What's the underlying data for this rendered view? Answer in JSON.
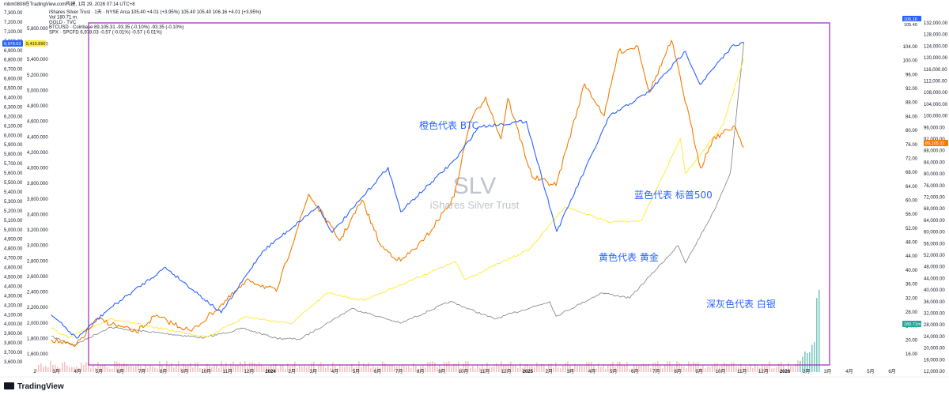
{
  "header": {
    "line1": "mbm0808在TradingView.com构建, 1月 29, 2026 07:14 UTC+8",
    "legend": [
      {
        "text": "iShares Silver Trust · 1天 · NYSE Arca  105.40  +4.01 (+3.95%)  105.40 105.40 106.16 +4.01 (+3.95%)",
        "color": "#131722"
      },
      {
        "text": "Vol  180.71 m",
        "color": "#131722"
      },
      {
        "text": "GOLD · TVC",
        "color": "#b8a000"
      },
      {
        "text": "BTCUSD · Coinbase  89,105.31  -93.35 (-0.10%)  -93.35 (-0.10%)",
        "color": "#ef6c00"
      },
      {
        "text": "SPX · SPCFD  6,978.03  -0.57 (-0.01%)  -0.57 (-0.01%)",
        "color": "#2962ff"
      }
    ]
  },
  "colors": {
    "btc": "#f57c00",
    "spx": "#2962ff",
    "gold": "#ffeb3b",
    "silver": "#808080",
    "frame": "#9c27b0",
    "volume": "#ef9a9a"
  },
  "watermark": {
    "symbol": "SLV",
    "name": "iShares Silver Trust"
  },
  "annotations": {
    "btc": "橙色代表 BTC",
    "spx": "蓝色代表 标普500",
    "gold": "黄色代表 黄金",
    "silver": "深灰色代表 白银"
  },
  "left_axis_spx": {
    "labels": [
      "7,300.00",
      "7,200.00",
      "7,100.00",
      "7,000.00",
      "6,900.00",
      "6,800.00",
      "6,700.00",
      "6,600.00",
      "6,500.00",
      "6,400.00",
      "6,300.00",
      "6,200.00",
      "6,100.00",
      "6,000.00",
      "5,900.00",
      "5,800.00",
      "5,700.00",
      "5,600.00",
      "5,500.00",
      "5,400.00",
      "5,300.00",
      "5,200.00",
      "5,100.00",
      "5,000.00",
      "4,900.00",
      "4,800.00",
      "4,700.00",
      "4,600.00",
      "4,500.00",
      "4,400.00",
      "4,300.00",
      "4,200.00",
      "4,100.00",
      "4,000.00",
      "3,900.00",
      "3,800.00",
      "3,700.00",
      "3,600.00"
    ],
    "current": "6,978.03"
  },
  "left_axis_gold": {
    "labels": [
      "5,800.000",
      "5,600.000",
      "5,400.000",
      "5,200.000",
      "5,000.000",
      "4,800.000",
      "4,600.000",
      "4,400.000",
      "4,200.000",
      "4,000.000",
      "3,800.000",
      "3,600.000",
      "3,400.000",
      "3,200.000",
      "3,000.000",
      "2,800.000",
      "2,600.000",
      "2,400.000",
      "2,200.000",
      "2,000.000",
      "1,800.000",
      "1,600.000"
    ],
    "current": "5,415.890"
  },
  "right_axis_slv": {
    "labels": [
      "104.00",
      "100.00",
      "96.00",
      "92.00",
      "88.00",
      "84.00",
      "80.00",
      "76.00",
      "72.00",
      "68.00",
      "64.00",
      "60.00",
      "56.00",
      "52.00",
      "48.00",
      "44.00",
      "40.00",
      "36.00",
      "32.00",
      "28.00",
      "24.00",
      "20.00",
      "16.00"
    ],
    "current": "106.16",
    "sub": "105.40"
  },
  "right_axis_btc": {
    "labels": [
      "132,000.00",
      "128,000.00",
      "124,000.00",
      "120,000.00",
      "116,000.00",
      "112,000.00",
      "108,000.00",
      "104,000.00",
      "100,000.00",
      "96,000.00",
      "92,000.00",
      "88,000.00",
      "84,000.00",
      "80,000.00",
      "76,000.00",
      "72,000.00",
      "68,000.00",
      "64,000.00",
      "60,000.00",
      "56,000.00",
      "52,000.00",
      "48,000.00",
      "44,000.00",
      "40,000.00",
      "36,000.00",
      "32,000.00",
      "28,000.00",
      "24,000.00",
      "20,000.00",
      "16,000.00",
      "12,000.00"
    ],
    "current": "89,105.31",
    "vol": "180.71m"
  },
  "time_axis": [
    "2",
    "3月",
    "4月",
    "5月",
    "6月",
    "7月",
    "8月",
    "9月",
    "10月",
    "11月",
    "12月",
    "2024",
    "2月",
    "3月",
    "4月",
    "5月",
    "6月",
    "7月",
    "8月",
    "9月",
    "10月",
    "11月",
    "12月",
    "2025",
    "2月",
    "3月",
    "4月",
    "5月",
    "6月",
    "7月",
    "8月",
    "9月",
    "10月",
    "11月",
    "12月",
    "2026",
    "2月",
    "3月",
    "4月",
    "5月",
    "6月"
  ],
  "footer": {
    "logo": "TradingView"
  },
  "chart_data": {
    "type": "line",
    "x_range": [
      "2023-02",
      "2026-01-28"
    ],
    "series": [
      {
        "name": "BTCUSD · Coinbase",
        "unit": "USD",
        "points": [
          [
            "2023-02-01",
            23000
          ],
          [
            "2023-03-10",
            20500
          ],
          [
            "2023-04-15",
            30000
          ],
          [
            "2023-06-15",
            25500
          ],
          [
            "2023-07-15",
            31000
          ],
          [
            "2023-09-10",
            25800
          ],
          [
            "2023-10-25",
            34500
          ],
          [
            "2023-12-10",
            43500
          ],
          [
            "2024-01-22",
            39500
          ],
          [
            "2024-03-13",
            73000
          ],
          [
            "2024-05-01",
            57000
          ],
          [
            "2024-06-05",
            71000
          ],
          [
            "2024-07-05",
            55000
          ],
          [
            "2024-08-05",
            50000
          ],
          [
            "2024-09-10",
            57000
          ],
          [
            "2024-10-28",
            72000
          ],
          [
            "2024-11-22",
            98000
          ],
          [
            "2024-12-17",
            106500
          ],
          [
            "2025-01-10",
            92000
          ],
          [
            "2025-01-21",
            106000
          ],
          [
            "2025-02-28",
            79000
          ],
          [
            "2025-04-07",
            76000
          ],
          [
            "2025-05-22",
            111000
          ],
          [
            "2025-06-22",
            100000
          ],
          [
            "2025-07-14",
            122000
          ],
          [
            "2025-08-14",
            124000
          ],
          [
            "2025-09-01",
            108000
          ],
          [
            "2025-10-06",
            126000
          ],
          [
            "2025-11-21",
            82000
          ],
          [
            "2025-12-10",
            92000
          ],
          [
            "2026-01-14",
            96500
          ],
          [
            "2026-01-28",
            89105.31
          ]
        ]
      },
      {
        "name": "SPX · SPCFD",
        "unit": "index",
        "points": [
          [
            "2023-02-01",
            4100
          ],
          [
            "2023-03-13",
            3850
          ],
          [
            "2023-05-01",
            4150
          ],
          [
            "2023-07-31",
            4600
          ],
          [
            "2023-10-27",
            4120
          ],
          [
            "2023-12-31",
            4770
          ],
          [
            "2024-03-28",
            5250
          ],
          [
            "2024-04-19",
            4970
          ],
          [
            "2024-07-16",
            5660
          ],
          [
            "2024-08-05",
            5190
          ],
          [
            "2024-10-31",
            5750
          ],
          [
            "2024-12-06",
            6090
          ],
          [
            "2025-02-19",
            6150
          ],
          [
            "2025-04-08",
            4980
          ],
          [
            "2025-06-30",
            6200
          ],
          [
            "2025-08-31",
            6460
          ],
          [
            "2025-10-28",
            6890
          ],
          [
            "2025-11-20",
            6540
          ],
          [
            "2026-01-12",
            6960
          ],
          [
            "2026-01-28",
            6978.03
          ]
        ]
      },
      {
        "name": "GOLD · TVC",
        "unit": "USD/oz",
        "points": [
          [
            "2023-02-01",
            1930
          ],
          [
            "2023-02-28",
            1810
          ],
          [
            "2023-05-04",
            2050
          ],
          [
            "2023-10-05",
            1820
          ],
          [
            "2023-12-04",
            2080
          ],
          [
            "2024-02-14",
            1990
          ],
          [
            "2024-04-12",
            2390
          ],
          [
            "2024-06-07",
            2290
          ],
          [
            "2024-10-30",
            2790
          ],
          [
            "2024-11-14",
            2560
          ],
          [
            "2025-02-24",
            2950
          ],
          [
            "2025-04-21",
            3500
          ],
          [
            "2025-06-30",
            3300
          ],
          [
            "2025-08-20",
            3320
          ],
          [
            "2025-10-20",
            4380
          ],
          [
            "2025-10-28",
            3930
          ],
          [
            "2025-12-26",
            4550
          ],
          [
            "2026-01-28",
            5415.89
          ]
        ]
      },
      {
        "name": "iShares Silver Trust",
        "unit": "USD",
        "points": [
          [
            "2023-02-01",
            21.0
          ],
          [
            "2023-03-10",
            18.6
          ],
          [
            "2023-05-04",
            23.6
          ],
          [
            "2023-09-30",
            20.6
          ],
          [
            "2023-11-30",
            23.3
          ],
          [
            "2024-01-22",
            20.5
          ],
          [
            "2024-02-28",
            20.2
          ],
          [
            "2024-05-20",
            29.0
          ],
          [
            "2024-08-05",
            24.8
          ],
          [
            "2024-10-22",
            31.0
          ],
          [
            "2024-12-31",
            26.0
          ],
          [
            "2025-03-28",
            31.0
          ],
          [
            "2025-04-07",
            26.8
          ],
          [
            "2025-06-18",
            33.5
          ],
          [
            "2025-08-01",
            32.0
          ],
          [
            "2025-10-16",
            47.0
          ],
          [
            "2025-10-28",
            42.0
          ],
          [
            "2025-12-12",
            57.0
          ],
          [
            "2026-01-07",
            68.0
          ],
          [
            "2026-01-28",
            105.4
          ]
        ]
      }
    ]
  }
}
